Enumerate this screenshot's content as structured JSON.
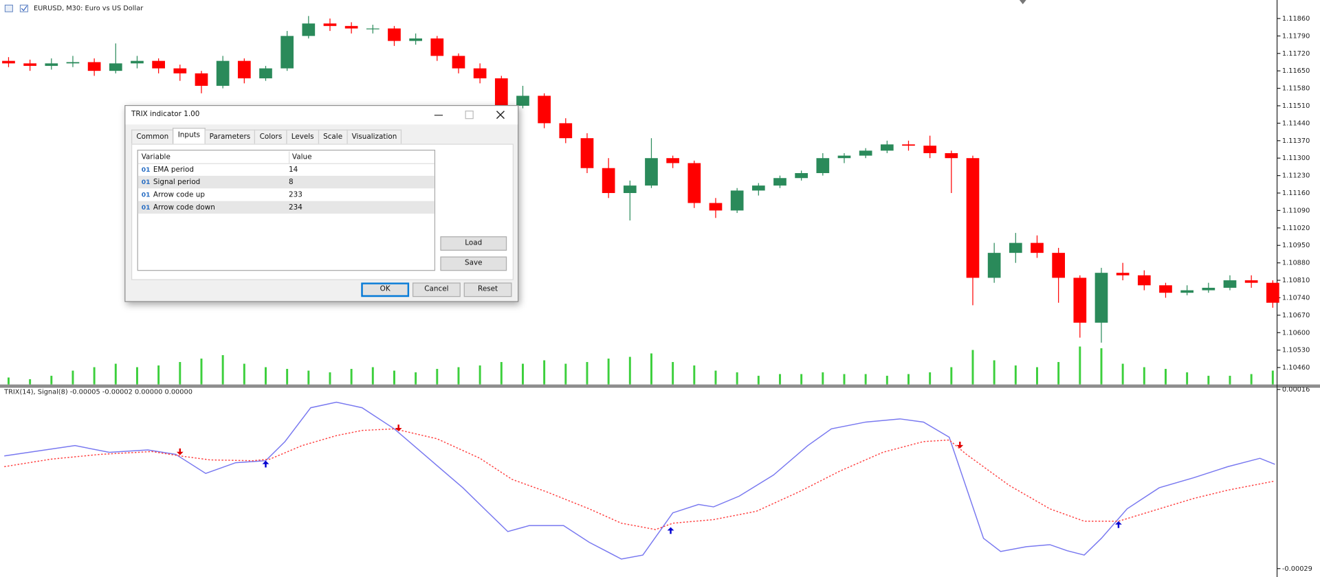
{
  "window": {
    "symbol_title": "EURUSD, M30:  Euro vs US Dollar"
  },
  "time_axis": {
    "xlim": [
      -0.4,
      59.2
    ]
  },
  "price_chart": {
    "type": "candlestick",
    "up_color": "#2a8a5a",
    "down_color": "#ff0000",
    "volume_color": "#3ccf3c",
    "ylim": [
      1.1046,
      1.1186
    ],
    "yticks": [
      {
        "value": 1.1186,
        "label": "1.11860"
      },
      {
        "value": 1.1179,
        "label": "1.11790"
      },
      {
        "value": 1.1172,
        "label": "1.11720"
      },
      {
        "value": 1.1165,
        "label": "1.11650"
      },
      {
        "value": 1.1158,
        "label": "1.11580"
      },
      {
        "value": 1.1151,
        "label": "1.11510"
      },
      {
        "value": 1.1144,
        "label": "1.11440"
      },
      {
        "value": 1.1137,
        "label": "1.11370"
      },
      {
        "value": 1.113,
        "label": "1.11300"
      },
      {
        "value": 1.1123,
        "label": "1.11230"
      },
      {
        "value": 1.1116,
        "label": "1.11160"
      },
      {
        "value": 1.1109,
        "label": "1.11090"
      },
      {
        "value": 1.1102,
        "label": "1.11020"
      },
      {
        "value": 1.1095,
        "label": "1.10950"
      },
      {
        "value": 1.1088,
        "label": "1.10880"
      },
      {
        "value": 1.1081,
        "label": "1.10810"
      },
      {
        "value": 1.1074,
        "label": "1.10740"
      },
      {
        "value": 1.1067,
        "label": "1.10670"
      },
      {
        "value": 1.106,
        "label": "1.10600"
      },
      {
        "value": 1.1053,
        "label": "1.10530"
      },
      {
        "value": 1.1046,
        "label": "1.10460"
      }
    ],
    "candles": [
      [
        1.1169,
        1.11705,
        1.11665,
        1.1168
      ],
      [
        1.1168,
        1.11695,
        1.1165,
        1.1167
      ],
      [
        1.1167,
        1.117,
        1.11655,
        1.1168
      ],
      [
        1.1168,
        1.1171,
        1.11665,
        1.11685
      ],
      [
        1.11685,
        1.117,
        1.1163,
        1.1165
      ],
      [
        1.1165,
        1.1176,
        1.1164,
        1.1168
      ],
      [
        1.1168,
        1.1171,
        1.1166,
        1.1169
      ],
      [
        1.1169,
        1.117,
        1.1164,
        1.1166
      ],
      [
        1.1166,
        1.11675,
        1.1161,
        1.1164
      ],
      [
        1.1164,
        1.1165,
        1.1156,
        1.1159
      ],
      [
        1.1159,
        1.1171,
        1.1158,
        1.1169
      ],
      [
        1.1169,
        1.117,
        1.116,
        1.1162
      ],
      [
        1.1162,
        1.1167,
        1.1161,
        1.1166
      ],
      [
        1.1166,
        1.1181,
        1.1165,
        1.1179
      ],
      [
        1.1179,
        1.1187,
        1.1178,
        1.1184
      ],
      [
        1.1184,
        1.1186,
        1.1181,
        1.1183
      ],
      [
        1.1183,
        1.11845,
        1.118,
        1.1182
      ],
      [
        1.1182,
        1.11835,
        1.118,
        1.1182
      ],
      [
        1.1182,
        1.1183,
        1.1175,
        1.1177
      ],
      [
        1.1177,
        1.118,
        1.11755,
        1.1178
      ],
      [
        1.1178,
        1.1179,
        1.1169,
        1.1171
      ],
      [
        1.1171,
        1.1172,
        1.1164,
        1.1166
      ],
      [
        1.1166,
        1.1168,
        1.116,
        1.1162
      ],
      [
        1.1162,
        1.1163,
        1.1149,
        1.1151
      ],
      [
        1.1151,
        1.1159,
        1.115,
        1.1155
      ],
      [
        1.1155,
        1.1156,
        1.1142,
        1.1144
      ],
      [
        1.1144,
        1.1146,
        1.1136,
        1.1138
      ],
      [
        1.1138,
        1.114,
        1.1124,
        1.1126
      ],
      [
        1.1126,
        1.113,
        1.1114,
        1.1116
      ],
      [
        1.1116,
        1.1121,
        1.1105,
        1.1119
      ],
      [
        1.1119,
        1.1138,
        1.1118,
        1.113
      ],
      [
        1.113,
        1.1131,
        1.1126,
        1.1128
      ],
      [
        1.1128,
        1.1129,
        1.111,
        1.1112
      ],
      [
        1.1112,
        1.1114,
        1.1106,
        1.1109
      ],
      [
        1.1109,
        1.1118,
        1.1108,
        1.1117
      ],
      [
        1.1117,
        1.112,
        1.1115,
        1.1119
      ],
      [
        1.1119,
        1.1123,
        1.1118,
        1.1122
      ],
      [
        1.1122,
        1.1125,
        1.1121,
        1.1124
      ],
      [
        1.1124,
        1.1132,
        1.1123,
        1.113
      ],
      [
        1.113,
        1.1132,
        1.1128,
        1.1131
      ],
      [
        1.1131,
        1.1134,
        1.113,
        1.1133
      ],
      [
        1.1133,
        1.1137,
        1.1132,
        1.11355
      ],
      [
        1.11355,
        1.1137,
        1.1133,
        1.1135
      ],
      [
        1.1135,
        1.1139,
        1.113,
        1.1132
      ],
      [
        1.1132,
        1.1133,
        1.1116,
        1.113
      ],
      [
        1.113,
        1.1131,
        1.1071,
        1.1082
      ],
      [
        1.1082,
        1.1096,
        1.108,
        1.1092
      ],
      [
        1.1092,
        1.11,
        1.1088,
        1.1096
      ],
      [
        1.1096,
        1.1099,
        1.109,
        1.1092
      ],
      [
        1.1092,
        1.1094,
        1.1072,
        1.1082
      ],
      [
        1.1082,
        1.1083,
        1.1058,
        1.1064
      ],
      [
        1.1064,
        1.1086,
        1.1056,
        1.1084
      ],
      [
        1.1084,
        1.1088,
        1.1081,
        1.1083
      ],
      [
        1.1083,
        1.1085,
        1.1077,
        1.1079
      ],
      [
        1.1079,
        1.108,
        1.1074,
        1.1076
      ],
      [
        1.1076,
        1.1079,
        1.1075,
        1.1077
      ],
      [
        1.1077,
        1.108,
        1.1076,
        1.1078
      ],
      [
        1.1078,
        1.1083,
        1.1077,
        1.1081
      ],
      [
        1.1081,
        1.1083,
        1.1078,
        1.108
      ],
      [
        1.108,
        1.1081,
        1.107,
        1.1072
      ]
    ],
    "volumes": [
      200,
      150,
      250,
      400,
      500,
      600,
      500,
      550,
      650,
      750,
      850,
      600,
      500,
      450,
      400,
      350,
      450,
      500,
      400,
      350,
      450,
      500,
      550,
      650,
      600,
      700,
      600,
      650,
      750,
      800,
      900,
      650,
      550,
      400,
      350,
      250,
      300,
      300,
      350,
      300,
      300,
      250,
      300,
      350,
      500,
      1000,
      700,
      550,
      500,
      650,
      1100,
      1050,
      600,
      500,
      450,
      350,
      250,
      250,
      300,
      400
    ]
  },
  "indicator": {
    "type": "line",
    "label": "TRIX(14), Signal(8) -0.00005 -0.00002 0.00000 0.00000",
    "ylim": [
      -0.00029,
      0.00016
    ],
    "yticks": [
      0.00016,
      -0.00029
    ],
    "series": [
      {
        "color": "#7878f0",
        "style": "solid",
        "x": [
          -0.2,
          3.1,
          4.7,
          6.5,
          7.8,
          9.2,
          10.6,
          12.0,
          12.9,
          14.1,
          15.3,
          16.5,
          18.0,
          19.6,
          21.2,
          22.4,
          23.3,
          24.3,
          25.9,
          27.1,
          28.6,
          29.6,
          31.0,
          32.2,
          32.9,
          34.1,
          35.7,
          37.3,
          38.4,
          40.0,
          41.6,
          42.7,
          43.9,
          44.7,
          45.5,
          46.3,
          47.5,
          48.6,
          49.4,
          50.2,
          51.0,
          52.2,
          53.7,
          55.3,
          56.9,
          58.4,
          59.1
        ],
        "values": [
          -7e-06,
          1.9e-05,
          2e-06,
          8e-06,
          -3e-06,
          -5.1e-05,
          -2.4e-05,
          -1.9e-05,
          2.9e-05,
          0.000114,
          0.000128,
          0.000114,
          6.1e-05,
          -1.3e-05,
          -8.7e-05,
          -0.00015,
          -0.000197,
          -0.000182,
          -0.000182,
          -0.000224,
          -0.000266,
          -0.000256,
          -0.00015,
          -0.000129,
          -0.000135,
          -0.000108,
          -5.5e-05,
          1.9e-05,
          6.1e-05,
          7.8e-05,
          8.6e-05,
          7.8e-05,
          4e-05,
          -8.7e-05,
          -0.000214,
          -0.000247,
          -0.000235,
          -0.00023,
          -0.000245,
          -0.000256,
          -0.000214,
          -0.00014,
          -8.7e-05,
          -6.2e-05,
          -3.4e-05,
          -1.3e-05,
          -2.8e-05
        ]
      },
      {
        "color": "#ff4040",
        "style": "dotted",
        "x": [
          -0.2,
          2.0,
          4.3,
          6.7,
          8.0,
          9.4,
          11.4,
          12.2,
          13.7,
          15.3,
          16.5,
          18.0,
          20.0,
          22.0,
          23.5,
          25.1,
          27.1,
          28.6,
          30.2,
          31.0,
          32.9,
          34.9,
          36.9,
          38.8,
          40.8,
          42.7,
          43.9,
          44.7,
          46.7,
          48.6,
          50.2,
          51.8,
          53.7,
          55.3,
          56.9,
          59.1
        ],
        "values": [
          -3.4e-05,
          -1.5e-05,
          -3e-06,
          4e-06,
          -7e-06,
          -1.7e-05,
          -1.9e-05,
          -1.5e-05,
          1.9e-05,
          4.4e-05,
          5.7e-05,
          6.1e-05,
          3.6e-05,
          -1.3e-05,
          -6.6e-05,
          -9.7e-05,
          -0.00014,
          -0.000176,
          -0.000192,
          -0.000176,
          -0.000167,
          -0.000146,
          -9.7e-05,
          -4.5e-05,
          2e-06,
          2.9e-05,
          3.3e-05,
          -3e-06,
          -8.1e-05,
          -0.00014,
          -0.000171,
          -0.000171,
          -0.00014,
          -0.000114,
          -9.3e-05,
          -7e-05
        ]
      }
    ],
    "arrows": [
      {
        "x": 8.0,
        "value": -3e-06,
        "direction": "down",
        "color": "#e00000"
      },
      {
        "x": 12.0,
        "value": -1.9e-05,
        "direction": "up",
        "color": "#0000d0"
      },
      {
        "x": 18.2,
        "value": 5.7e-05,
        "direction": "down",
        "color": "#e00000"
      },
      {
        "x": 30.9,
        "value": -0.000186,
        "direction": "up",
        "color": "#0000d0"
      },
      {
        "x": 44.4,
        "value": 1.4e-05,
        "direction": "down",
        "color": "#e00000"
      },
      {
        "x": 51.8,
        "value": -0.000171,
        "direction": "up",
        "color": "#0000d0"
      }
    ]
  },
  "dialog": {
    "title": "TRIX indicator 1.00",
    "tabs": [
      "Common",
      "Inputs",
      "Parameters",
      "Colors",
      "Levels",
      "Scale",
      "Visualization"
    ],
    "inputs": {
      "columns": [
        "Variable",
        "Value"
      ],
      "rows": [
        {
          "type": "01",
          "variable": "EMA period",
          "value": 14
        },
        {
          "type": "01",
          "variable": "Signal period",
          "value": 8
        },
        {
          "type": "01",
          "variable": "Arrow code up",
          "value": 233
        },
        {
          "type": "01",
          "variable": "Arrow code down",
          "value": 234
        }
      ]
    },
    "buttons": {
      "load": "Load",
      "save": "Save",
      "ok": "OK",
      "cancel": "Cancel",
      "reset": "Reset"
    }
  }
}
